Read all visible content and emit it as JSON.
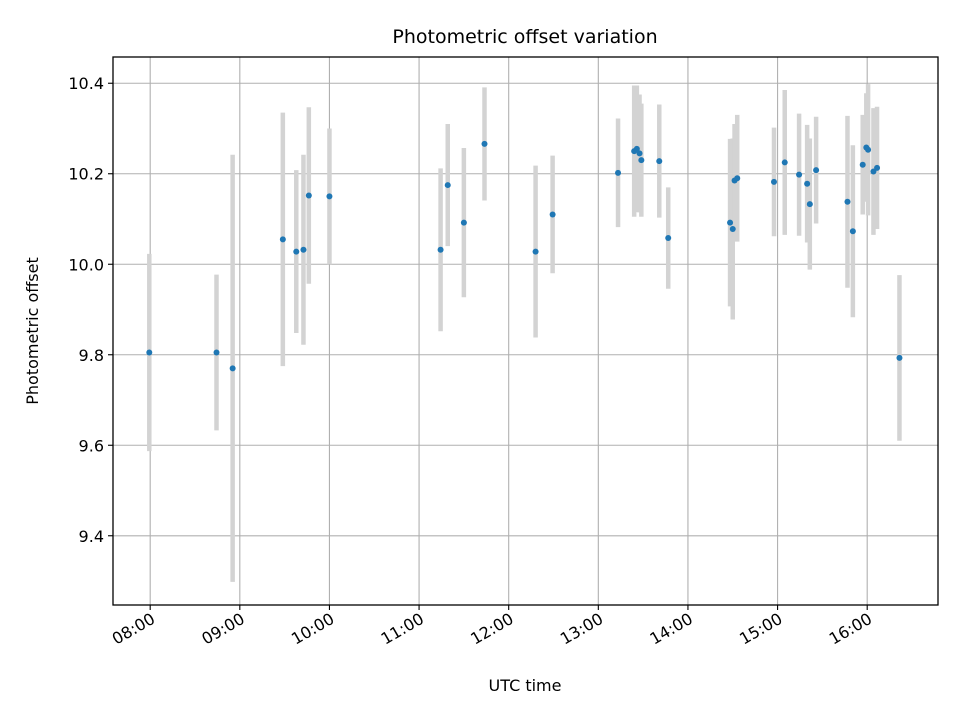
{
  "chart_data": {
    "type": "scatter",
    "title": "Photometric offset variation",
    "xlabel": "UTC time",
    "ylabel": "Photometric offset",
    "grid": true,
    "xlim_hours": [
      7.585,
      16.79
    ],
    "ylim": [
      9.247,
      10.458
    ],
    "x_ticks": [
      {
        "value": 8,
        "label": "08:00"
      },
      {
        "value": 9,
        "label": "09:00"
      },
      {
        "value": 10,
        "label": "10:00"
      },
      {
        "value": 11,
        "label": "11:00"
      },
      {
        "value": 12,
        "label": "12:00"
      },
      {
        "value": 13,
        "label": "13:00"
      },
      {
        "value": 14,
        "label": "14:00"
      },
      {
        "value": 15,
        "label": "15:00"
      },
      {
        "value": 16,
        "label": "16:00"
      }
    ],
    "y_ticks": [
      {
        "value": 9.4,
        "label": "9.4"
      },
      {
        "value": 9.6,
        "label": "9.6"
      },
      {
        "value": 9.8,
        "label": "9.8"
      },
      {
        "value": 10.0,
        "label": "10.0"
      },
      {
        "value": 10.2,
        "label": "10.2"
      },
      {
        "value": 10.4,
        "label": "10.4"
      }
    ],
    "colors": {
      "marker": "#1f77b4",
      "errorbar": "#d3d3d3",
      "grid": "#b0b0b0",
      "axes": "#000000"
    },
    "series": [
      {
        "name": "offset",
        "points": [
          {
            "x": 7.99,
            "y": 9.805,
            "err": 0.218
          },
          {
            "x": 8.74,
            "y": 9.805,
            "err": 0.172
          },
          {
            "x": 8.92,
            "y": 9.77,
            "err": 0.472
          },
          {
            "x": 9.48,
            "y": 10.055,
            "err": 0.28
          },
          {
            "x": 9.63,
            "y": 10.028,
            "err": 0.18
          },
          {
            "x": 9.71,
            "y": 10.032,
            "err": 0.21
          },
          {
            "x": 9.77,
            "y": 10.152,
            "err": 0.195
          },
          {
            "x": 10.0,
            "y": 10.15,
            "err": 0.15
          },
          {
            "x": 11.24,
            "y": 10.032,
            "err": 0.18
          },
          {
            "x": 11.32,
            "y": 10.175,
            "err": 0.135
          },
          {
            "x": 11.5,
            "y": 10.092,
            "err": 0.165
          },
          {
            "x": 11.73,
            "y": 10.266,
            "err": 0.125
          },
          {
            "x": 12.3,
            "y": 10.028,
            "err": 0.19
          },
          {
            "x": 12.49,
            "y": 10.11,
            "err": 0.13
          },
          {
            "x": 13.22,
            "y": 10.202,
            "err": 0.12
          },
          {
            "x": 13.4,
            "y": 10.25,
            "err": 0.145
          },
          {
            "x": 13.43,
            "y": 10.255,
            "err": 0.14
          },
          {
            "x": 13.46,
            "y": 10.245,
            "err": 0.13
          },
          {
            "x": 13.48,
            "y": 10.23,
            "err": 0.125
          },
          {
            "x": 13.68,
            "y": 10.228,
            "err": 0.125
          },
          {
            "x": 13.78,
            "y": 10.058,
            "err": 0.112
          },
          {
            "x": 14.47,
            "y": 10.092,
            "err": 0.185
          },
          {
            "x": 14.5,
            "y": 10.078,
            "err": 0.2
          },
          {
            "x": 14.52,
            "y": 10.185,
            "err": 0.125
          },
          {
            "x": 14.55,
            "y": 10.19,
            "err": 0.14
          },
          {
            "x": 14.96,
            "y": 10.182,
            "err": 0.12
          },
          {
            "x": 15.08,
            "y": 10.225,
            "err": 0.16
          },
          {
            "x": 15.24,
            "y": 10.198,
            "err": 0.135
          },
          {
            "x": 15.33,
            "y": 10.178,
            "err": 0.13
          },
          {
            "x": 15.36,
            "y": 10.133,
            "err": 0.145
          },
          {
            "x": 15.43,
            "y": 10.208,
            "err": 0.118
          },
          {
            "x": 15.78,
            "y": 10.138,
            "err": 0.19
          },
          {
            "x": 15.84,
            "y": 10.073,
            "err": 0.19
          },
          {
            "x": 15.95,
            "y": 10.22,
            "err": 0.11
          },
          {
            "x": 15.99,
            "y": 10.258,
            "err": 0.12
          },
          {
            "x": 16.01,
            "y": 10.253,
            "err": 0.145
          },
          {
            "x": 16.07,
            "y": 10.205,
            "err": 0.14
          },
          {
            "x": 16.11,
            "y": 10.213,
            "err": 0.135
          },
          {
            "x": 16.36,
            "y": 9.793,
            "err": 0.183
          }
        ]
      }
    ]
  }
}
